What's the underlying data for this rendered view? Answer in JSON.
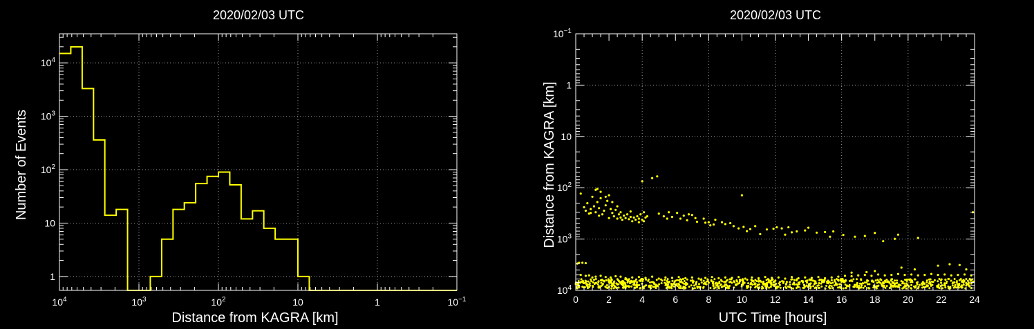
{
  "colors": {
    "background": "#000000",
    "axes": "#ffffff",
    "grid": "#9a9a9a",
    "data": "#ffff00"
  },
  "chart_data": [
    {
      "type": "histogram",
      "title": "2020/02/03 UTC",
      "xlabel": "Distance from KAGRA [km]",
      "ylabel": "Number of Events",
      "x_scale": "log-reversed",
      "y_scale": "log",
      "x_ticks": [
        {
          "v": 10000,
          "base": "10",
          "exp": "4"
        },
        {
          "v": 1000,
          "base": "10",
          "exp": "3"
        },
        {
          "v": 100,
          "base": "10",
          "exp": "2"
        },
        {
          "v": 10,
          "base": "10",
          "exp": ""
        },
        {
          "v": 1,
          "base": "1",
          "exp": ""
        },
        {
          "v": 0.1,
          "base": "10",
          "exp": "−1"
        }
      ],
      "y_ticks": [
        {
          "v": 1,
          "base": "1",
          "exp": ""
        },
        {
          "v": 10,
          "base": "10",
          "exp": ""
        },
        {
          "v": 100,
          "base": "10",
          "exp": "2"
        },
        {
          "v": 1000,
          "base": "10",
          "exp": "3"
        },
        {
          "v": 10000,
          "base": "10",
          "exp": "4"
        }
      ],
      "xlim": [
        10000,
        0.1
      ],
      "ylim": [
        0.55,
        35000
      ],
      "grid": true,
      "bin_edges_log10": [
        4.0,
        3.857,
        3.714,
        3.571,
        3.429,
        3.286,
        3.143,
        3.0,
        2.857,
        2.714,
        2.571,
        2.429,
        2.286,
        2.143,
        2.0,
        1.857,
        1.714,
        1.571,
        1.429,
        1.286,
        1.143,
        1.0,
        0.857,
        0.714,
        0.571,
        0.429,
        0.286,
        0.143,
        0.0,
        -0.143,
        -0.286,
        -0.429,
        -0.571,
        -0.714,
        -0.857,
        -1.0
      ],
      "counts": [
        15000,
        20000,
        3300,
        360,
        14,
        18,
        0,
        0,
        1,
        5,
        18,
        24,
        55,
        75,
        90,
        52,
        12,
        17,
        8,
        5,
        5,
        1,
        0,
        0,
        0,
        0,
        0,
        0,
        0,
        0,
        0,
        0,
        0,
        0,
        0
      ]
    },
    {
      "type": "scatter",
      "title": "2020/02/03 UTC",
      "xlabel": "UTC Time [hours]",
      "ylabel": "Distance from KAGRA [km]",
      "y_scale": "log-reversed",
      "x_ticks": [
        0,
        2,
        4,
        6,
        8,
        10,
        12,
        14,
        16,
        18,
        20,
        22,
        24
      ],
      "y_ticks": [
        {
          "v": 0.1,
          "base": "10",
          "exp": "−1"
        },
        {
          "v": 1,
          "base": "1",
          "exp": ""
        },
        {
          "v": 10,
          "base": "10",
          "exp": ""
        },
        {
          "v": 100,
          "base": "10",
          "exp": "2"
        },
        {
          "v": 1000,
          "base": "10",
          "exp": "3"
        },
        {
          "v": 10000,
          "base": "10",
          "exp": "4"
        }
      ],
      "xlim": [
        0,
        24
      ],
      "ylim": [
        0.1,
        10000
      ],
      "grid": true,
      "points": [
        [
          0.3,
          130
        ],
        [
          0.5,
          240
        ],
        [
          0.7,
          200
        ],
        [
          0.8,
          320
        ],
        [
          0.9,
          260
        ],
        [
          1.0,
          150
        ],
        [
          1.1,
          230
        ],
        [
          1.2,
          300
        ],
        [
          1.3,
          190
        ],
        [
          1.4,
          250
        ],
        [
          1.5,
          120
        ],
        [
          1.6,
          330
        ],
        [
          1.7,
          280
        ],
        [
          1.8,
          220
        ],
        [
          1.9,
          180
        ],
        [
          2.0,
          140
        ],
        [
          2.1,
          260
        ],
        [
          2.2,
          310
        ],
        [
          2.3,
          360
        ],
        [
          2.4,
          270
        ],
        [
          2.5,
          400
        ],
        [
          2.6,
          330
        ],
        [
          2.7,
          380
        ],
        [
          2.8,
          420
        ],
        [
          2.9,
          350
        ],
        [
          3.0,
          390
        ],
        [
          3.1,
          330
        ],
        [
          3.2,
          410
        ],
        [
          3.3,
          370
        ],
        [
          3.4,
          450
        ],
        [
          3.5,
          380
        ],
        [
          3.6,
          420
        ],
        [
          3.7,
          360
        ],
        [
          3.8,
          400
        ],
        [
          3.9,
          330
        ],
        [
          4.0,
          420
        ],
        [
          4.1,
          450
        ],
        [
          4.2,
          380
        ],
        [
          1.2,
          110
        ],
        [
          1.3,
          105
        ],
        [
          1.5,
          160
        ],
        [
          1.8,
          150
        ],
        [
          2.2,
          190
        ],
        [
          2.5,
          230
        ],
        [
          0.6,
          280
        ],
        [
          0.9,
          310
        ],
        [
          1.4,
          350
        ],
        [
          2.0,
          390
        ],
        [
          2.7,
          300
        ],
        [
          3.3,
          290
        ],
        [
          3.8,
          470
        ],
        [
          4.1,
          300
        ],
        [
          4.3,
          360
        ],
        [
          4.0,
          75
        ],
        [
          4.6,
          65
        ],
        [
          4.9,
          60
        ],
        [
          5.0,
          320
        ],
        [
          5.3,
          360
        ],
        [
          5.5,
          400
        ],
        [
          5.6,
          300
        ],
        [
          5.8,
          370
        ],
        [
          6.1,
          310
        ],
        [
          6.3,
          400
        ],
        [
          6.5,
          350
        ],
        [
          6.7,
          430
        ],
        [
          7.0,
          340
        ],
        [
          7.3,
          460
        ],
        [
          7.7,
          400
        ],
        [
          7.8,
          480
        ],
        [
          8.1,
          540
        ],
        [
          8.4,
          420
        ],
        [
          8.8,
          470
        ],
        [
          9.0,
          510
        ],
        [
          9.3,
          490
        ],
        [
          9.8,
          620
        ],
        [
          10.1,
          580
        ],
        [
          10.3,
          700
        ],
        [
          10.8,
          560
        ],
        [
          11.1,
          800
        ],
        [
          11.5,
          650
        ],
        [
          12.1,
          590
        ],
        [
          12.4,
          620
        ],
        [
          12.8,
          590
        ],
        [
          13.3,
          710
        ],
        [
          13.8,
          680
        ],
        [
          14.5,
          750
        ],
        [
          15.0,
          730
        ],
        [
          15.5,
          710
        ],
        [
          16.1,
          830
        ],
        [
          16.8,
          900
        ],
        [
          17.4,
          870
        ],
        [
          18.0,
          760
        ],
        [
          18.5,
          1100
        ],
        [
          19.2,
          990
        ],
        [
          19.4,
          820
        ],
        [
          20.6,
          950
        ],
        [
          23.9,
          300
        ],
        [
          10.0,
          140
        ],
        [
          14.0,
          600
        ],
        [
          15.3,
          900
        ],
        [
          11.9,
          630
        ],
        [
          12.6,
          820
        ],
        [
          13.0,
          740
        ],
        [
          8.3,
          520
        ],
        [
          8.0,
          470
        ],
        [
          7.2,
          390
        ],
        [
          6.8,
          330
        ],
        [
          9.5,
          560
        ],
        [
          10.5,
          640
        ],
        [
          0.1,
          3000
        ],
        [
          0.2,
          2900
        ],
        [
          0.4,
          2900
        ],
        [
          0.6,
          2950
        ],
        [
          0.3,
          5000
        ],
        [
          0.6,
          5200
        ],
        [
          0.8,
          5100
        ],
        [
          1.0,
          5600
        ],
        [
          1.2,
          5400
        ],
        [
          1.5,
          5200
        ],
        [
          1.8,
          5500
        ],
        [
          2.1,
          5600
        ],
        [
          2.4,
          5300
        ],
        [
          2.7,
          5400
        ],
        [
          3.0,
          5800
        ],
        [
          3.4,
          5600
        ],
        [
          3.8,
          5500
        ],
        [
          4.2,
          5700
        ],
        [
          4.6,
          5400
        ],
        [
          5.0,
          5900
        ],
        [
          5.4,
          5600
        ],
        [
          5.8,
          5700
        ],
        [
          6.2,
          5500
        ],
        [
          6.6,
          5800
        ],
        [
          7.0,
          5600
        ],
        [
          7.4,
          5900
        ],
        [
          7.8,
          5700
        ],
        [
          8.2,
          5500
        ],
        [
          8.6,
          5800
        ],
        [
          9.0,
          5600
        ],
        [
          9.4,
          5700
        ],
        [
          9.8,
          5500
        ],
        [
          10.2,
          5900
        ],
        [
          10.6,
          5600
        ],
        [
          11.0,
          5800
        ],
        [
          11.4,
          5500
        ],
        [
          11.8,
          5700
        ],
        [
          12.2,
          5600
        ],
        [
          12.6,
          5900
        ],
        [
          13.0,
          5500
        ],
        [
          13.4,
          5800
        ],
        [
          13.8,
          5600
        ],
        [
          14.2,
          5700
        ],
        [
          14.6,
          5500
        ],
        [
          15.0,
          5800
        ],
        [
          15.4,
          5600
        ],
        [
          15.8,
          5400
        ],
        [
          16.2,
          5200
        ],
        [
          16.6,
          5300
        ],
        [
          17.0,
          5100
        ],
        [
          17.4,
          5000
        ],
        [
          17.8,
          5200
        ],
        [
          18.2,
          4900
        ],
        [
          18.6,
          5100
        ],
        [
          19.0,
          5000
        ],
        [
          19.4,
          4800
        ],
        [
          19.8,
          5000
        ],
        [
          20.2,
          4900
        ],
        [
          20.6,
          5100
        ],
        [
          21.0,
          5000
        ],
        [
          21.4,
          4800
        ],
        [
          21.8,
          5000
        ],
        [
          22.2,
          4900
        ],
        [
          22.6,
          5100
        ],
        [
          23.0,
          5000
        ],
        [
          23.4,
          4900
        ],
        [
          23.8,
          5100
        ],
        [
          17.5,
          4400
        ],
        [
          19.6,
          3600
        ],
        [
          21.8,
          3300
        ],
        [
          22.5,
          3100
        ],
        [
          23.1,
          3200
        ],
        [
          20.4,
          3900
        ],
        [
          16.6,
          4500
        ],
        [
          18.0,
          4200
        ],
        [
          23.5,
          3900
        ]
      ]
    }
  ]
}
